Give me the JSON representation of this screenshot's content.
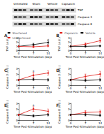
{
  "blot": {
    "columns": [
      "Untreated",
      "Sham",
      "Vehicle",
      "Capsaicin"
    ],
    "rows": [
      "TNF",
      "Caspase 3",
      "Caspase 8"
    ]
  },
  "chart_data": [
    {
      "type": "line",
      "title": "A",
      "xlabel": "Time Post-Stimulation (days)",
      "ylabel": "TNF (A.U.)",
      "x": [
        0,
        7,
        14
      ],
      "xlim": [
        0,
        14
      ],
      "xticks": [
        0,
        7,
        14
      ],
      "ylim": [
        0,
        3
      ],
      "yticks": [
        0,
        1,
        2,
        3
      ],
      "legend": "top",
      "series": [
        {
          "name": "Shortened",
          "color": "#000000",
          "marker": "circle",
          "values": [
            1.0,
            1.4,
            1.9
          ],
          "errors": [
            0.1,
            0.3,
            0.4
          ]
        },
        {
          "name": "Unshortened",
          "color": "#e0201b",
          "marker": "circle",
          "values": [
            1.0,
            0.9,
            1.1
          ],
          "errors": [
            0.1,
            0.2,
            0.2
          ]
        }
      ],
      "annotations": [
        {
          "x": 14,
          "y": 2.5,
          "text": "*"
        }
      ]
    },
    {
      "type": "line",
      "title": "B",
      "xlabel": "Time Post-Stimulation (days)",
      "ylabel": "TNF (A.U.)",
      "x": [
        0,
        7,
        14
      ],
      "xlim": [
        0,
        14
      ],
      "xticks": [
        0,
        7,
        14
      ],
      "ylim": [
        0,
        3
      ],
      "yticks": [
        0,
        1,
        2,
        3
      ],
      "legend": "top",
      "series": [
        {
          "name": "Capsaicin",
          "color": "#e0201b",
          "marker": "circle",
          "values": [
            1.0,
            1.5,
            2.3
          ],
          "errors": [
            0.1,
            0.3,
            0.4
          ]
        },
        {
          "name": "Vehicle",
          "color": "#000000",
          "marker": "circle",
          "values": [
            1.0,
            1.0,
            1.1
          ],
          "errors": [
            0.1,
            0.2,
            0.2
          ]
        }
      ],
      "annotations": [
        {
          "x": 14,
          "y": 2.8,
          "text": "*"
        }
      ]
    },
    {
      "type": "line",
      "title": "C",
      "xlabel": "Time Post-Stimulation (days)",
      "ylabel": "Caspase 3 (A.U.)",
      "x": [
        0,
        7,
        14
      ],
      "xlim": [
        0,
        14
      ],
      "xticks": [
        0,
        7,
        14
      ],
      "ylim": [
        0,
        3
      ],
      "yticks": [
        0,
        1,
        2,
        3
      ],
      "series": [
        {
          "color": "#000000",
          "marker": "circle",
          "values": [
            1.0,
            1.1,
            1.0
          ],
          "errors": [
            0.1,
            0.2,
            0.2
          ]
        },
        {
          "color": "#e0201b",
          "marker": "circle",
          "values": [
            1.0,
            1.8,
            2.2
          ],
          "errors": [
            0.1,
            0.5,
            0.4
          ]
        }
      ],
      "annotations": [
        {
          "x": 7,
          "y": 2.5,
          "text": "*"
        }
      ]
    },
    {
      "type": "line",
      "title": "D",
      "xlabel": "Time Post-Stimulation (days)",
      "ylabel": "Caspase 3 (A.U.)",
      "x": [
        0,
        7,
        14
      ],
      "xlim": [
        0,
        14
      ],
      "xticks": [
        0,
        7,
        14
      ],
      "ylim": [
        0,
        3
      ],
      "yticks": [
        0,
        1,
        2,
        3
      ],
      "series": [
        {
          "color": "#e0201b",
          "marker": "circle",
          "values": [
            1.0,
            1.6,
            2.0
          ],
          "errors": [
            0.1,
            0.4,
            0.5
          ]
        },
        {
          "color": "#000000",
          "marker": "circle",
          "values": [
            1.0,
            0.9,
            1.0
          ],
          "errors": [
            0.1,
            0.2,
            0.2
          ]
        }
      ]
    },
    {
      "type": "line",
      "title": "E",
      "xlabel": "Time Post-Stimulation (days)",
      "ylabel": "Caspase 8 (A.U.)",
      "x": [
        0,
        7,
        14
      ],
      "xlim": [
        0,
        14
      ],
      "xticks": [
        0,
        7,
        14
      ],
      "ylim": [
        0,
        3
      ],
      "yticks": [
        0,
        1,
        2,
        3
      ],
      "series": [
        {
          "color": "#000000",
          "marker": "circle",
          "values": [
            1.0,
            0.8,
            1.0
          ],
          "errors": [
            0.1,
            0.2,
            0.2
          ]
        },
        {
          "color": "#e0201b",
          "marker": "circle",
          "values": [
            1.0,
            2.0,
            1.6
          ],
          "errors": [
            0.1,
            0.4,
            0.4
          ]
        }
      ],
      "annotations": [
        {
          "x": 7,
          "y": 2.6,
          "text": "*"
        }
      ]
    },
    {
      "type": "line",
      "title": "F",
      "xlabel": "Time Post-Stimulation (days)",
      "ylabel": "Caspase 8 (A.U.)",
      "x": [
        0,
        7,
        14
      ],
      "xlim": [
        0,
        14
      ],
      "xticks": [
        0,
        7,
        14
      ],
      "ylim": [
        0,
        3
      ],
      "yticks": [
        0,
        1,
        2,
        3
      ],
      "series": [
        {
          "color": "#e0201b",
          "marker": "circle",
          "values": [
            1.0,
            1.4,
            1.5
          ],
          "errors": [
            0.1,
            0.3,
            0.3
          ]
        },
        {
          "color": "#000000",
          "marker": "circle",
          "values": [
            1.0,
            1.0,
            0.9
          ],
          "errors": [
            0.1,
            0.2,
            0.2
          ]
        }
      ]
    }
  ]
}
